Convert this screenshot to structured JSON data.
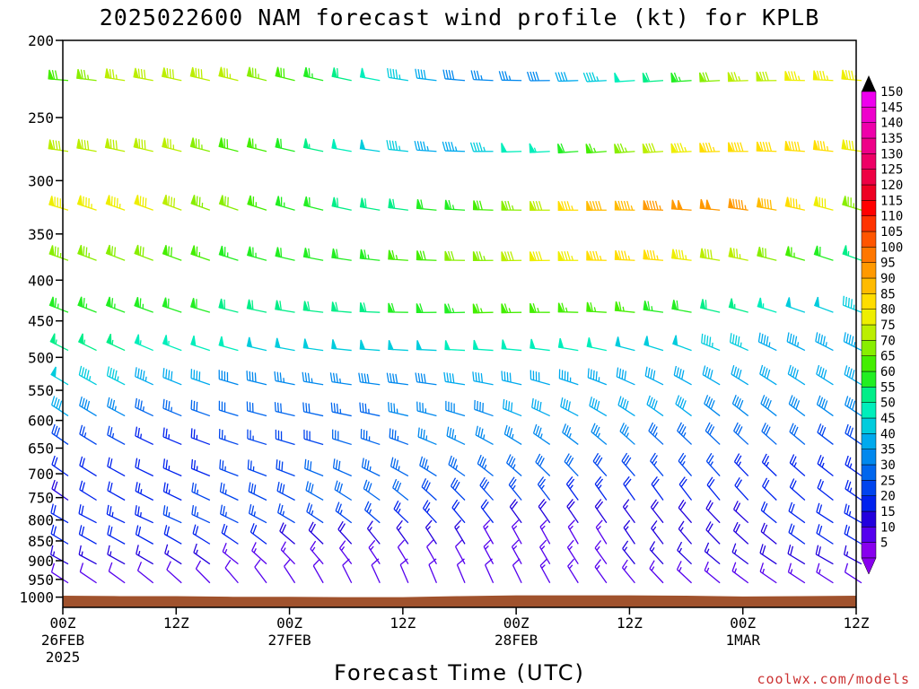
{
  "chart_data": {
    "type": "wind-profile",
    "title": "2025022600 NAM forecast wind profile (kt) for KPLB",
    "xlabel": "Forecast Time (UTC)",
    "credit": "coolwx.com/models",
    "y_axis": {
      "scale": "log",
      "range": [
        1030,
        200
      ],
      "ticks": [
        200,
        250,
        300,
        350,
        400,
        450,
        500,
        550,
        600,
        650,
        700,
        750,
        800,
        850,
        900,
        950,
        1000
      ]
    },
    "x_axis": {
      "range_hours": [
        0,
        84
      ],
      "ticks": [
        {
          "hour": 0,
          "lines": [
            "00Z",
            "26FEB",
            "2025"
          ]
        },
        {
          "hour": 12,
          "lines": [
            "12Z"
          ]
        },
        {
          "hour": 24,
          "lines": [
            "00Z",
            "27FEB"
          ]
        },
        {
          "hour": 36,
          "lines": [
            "12Z"
          ]
        },
        {
          "hour": 48,
          "lines": [
            "00Z",
            "28FEB"
          ]
        },
        {
          "hour": 60,
          "lines": [
            "12Z"
          ]
        },
        {
          "hour": 72,
          "lines": [
            "00Z",
            "1MAR"
          ]
        },
        {
          "hour": 84,
          "lines": [
            "12Z"
          ]
        }
      ]
    },
    "colorbar": {
      "levels": [
        5,
        10,
        15,
        20,
        25,
        30,
        35,
        40,
        45,
        50,
        55,
        60,
        65,
        70,
        75,
        80,
        85,
        90,
        95,
        100,
        105,
        110,
        115,
        120,
        125,
        130,
        135,
        140,
        145,
        150
      ],
      "colors": [
        "#8800ee",
        "#5500ee",
        "#2200dd",
        "#0022ee",
        "#0044ee",
        "#0066ee",
        "#0088ee",
        "#00aaee",
        "#00ccdd",
        "#00eebb",
        "#00ee88",
        "#22ee22",
        "#44ee00",
        "#88ee00",
        "#bbee00",
        "#eeee00",
        "#ffdd00",
        "#ffbb00",
        "#ff9900",
        "#ff7700",
        "#ff5500",
        "#ff3300",
        "#ff0000",
        "#ee0022",
        "#ee0044",
        "#ee0066",
        "#ee0088",
        "#ee00aa",
        "#ee00cc",
        "#ee00ee"
      ]
    },
    "terrain_color": "#a0522d",
    "surface_pressure": [
      {
        "hour": 0,
        "hpa": 996
      },
      {
        "hour": 6,
        "hpa": 997
      },
      {
        "hour": 12,
        "hpa": 997
      },
      {
        "hour": 18,
        "hpa": 999
      },
      {
        "hour": 24,
        "hpa": 999
      },
      {
        "hour": 30,
        "hpa": 1000
      },
      {
        "hour": 36,
        "hpa": 1000
      },
      {
        "hour": 42,
        "hpa": 997
      },
      {
        "hour": 48,
        "hpa": 995
      },
      {
        "hour": 54,
        "hpa": 995
      },
      {
        "hour": 60,
        "hpa": 995
      },
      {
        "hour": 66,
        "hpa": 996
      },
      {
        "hour": 72,
        "hpa": 998
      },
      {
        "hour": 78,
        "hpa": 997
      },
      {
        "hour": 84,
        "hpa": 996
      }
    ],
    "wind_profile_levels": [
      {
        "level": 220,
        "dir": 275,
        "speed": 60
      },
      {
        "level": 270,
        "dir": 275,
        "speed": 65
      },
      {
        "level": 320,
        "dir": 280,
        "speed": 75
      },
      {
        "level": 370,
        "dir": 280,
        "speed": 70
      },
      {
        "level": 430,
        "dir": 280,
        "speed": 60
      },
      {
        "level": 480,
        "dir": 285,
        "speed": 50
      },
      {
        "level": 530,
        "dir": 290,
        "speed": 42
      },
      {
        "level": 580,
        "dir": 295,
        "speed": 38
      },
      {
        "level": 630,
        "dir": 300,
        "speed": 32
      },
      {
        "level": 690,
        "dir": 305,
        "speed": 28
      },
      {
        "level": 740,
        "dir": 310,
        "speed": 25
      },
      {
        "level": 790,
        "dir": 310,
        "speed": 22
      },
      {
        "level": 840,
        "dir": 315,
        "speed": 18
      },
      {
        "level": 890,
        "dir": 315,
        "speed": 15
      },
      {
        "level": 940,
        "dir": 320,
        "speed": 12
      }
    ],
    "wind_time_step_hours": 3
  }
}
